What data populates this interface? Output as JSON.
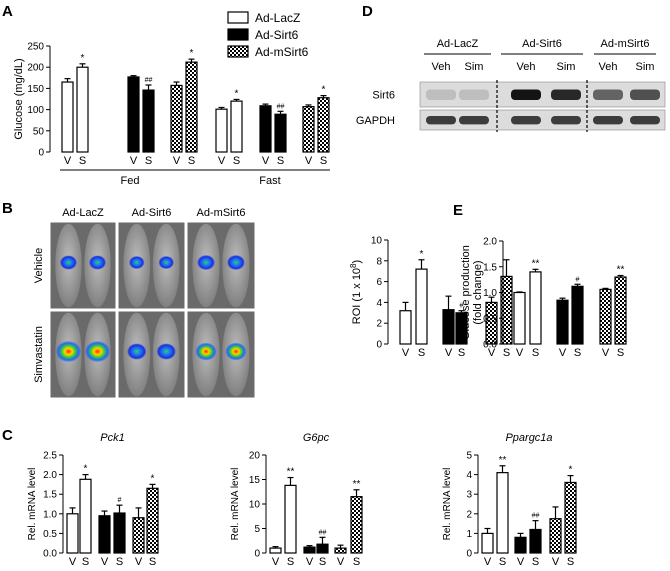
{
  "panel_labels": {
    "A": "A",
    "B": "B",
    "C": "C",
    "D": "D",
    "E": "E"
  },
  "legend": {
    "items": [
      {
        "label": "Ad-LacZ",
        "fill": "white"
      },
      {
        "label": "Ad-Sirt6",
        "fill": "black"
      },
      {
        "label": "Ad-mSirt6",
        "fill": "check"
      }
    ]
  },
  "colors": {
    "bar_border": "#000000",
    "blot_bg": "#dcdcdc",
    "lumen_bg": "#6a6a6a"
  },
  "chart_data": [
    {
      "id": "A",
      "type": "bar",
      "title": "",
      "ylabel": "Glucose (mg/dL)",
      "ylim": [
        0,
        250
      ],
      "yticks": [
        "0",
        "50",
        "100",
        "150",
        "200",
        "250"
      ],
      "groups": [
        "Fed",
        "Fast"
      ],
      "categories": [
        "V",
        "S",
        "V",
        "S",
        "V",
        "S",
        "V",
        "S",
        "V",
        "S",
        "V",
        "S"
      ],
      "series_fill": [
        "white",
        "white",
        "black",
        "black",
        "check",
        "check",
        "white",
        "white",
        "black",
        "black",
        "check",
        "check"
      ],
      "values": [
        165,
        200,
        177,
        146,
        157,
        212,
        101,
        120,
        109,
        89,
        107,
        128
      ],
      "errors": [
        8,
        8,
        3,
        12,
        8,
        7,
        4,
        4,
        4,
        7,
        4,
        5
      ],
      "annotations": [
        "",
        "*",
        "",
        "##",
        "",
        "*",
        "",
        "*",
        "",
        "##",
        "",
        "*"
      ]
    },
    {
      "id": "B",
      "type": "bar",
      "title": "",
      "ylabel": "ROI (1 x 10^8)",
      "ylim": [
        0,
        10
      ],
      "yticks": [
        "0",
        "2",
        "4",
        "6",
        "8",
        "10"
      ],
      "categories": [
        "V",
        "S",
        "V",
        "S",
        "V",
        "S"
      ],
      "series_fill": [
        "white",
        "white",
        "black",
        "black",
        "check",
        "check"
      ],
      "values": [
        3.2,
        7.2,
        3.3,
        3.0,
        4.0,
        6.5
      ],
      "errors": [
        0.8,
        0.9,
        1.3,
        0.2,
        0.5,
        1.6
      ],
      "annotations": [
        "",
        "*",
        "",
        "#",
        "",
        ""
      ]
    },
    {
      "id": "E",
      "type": "bar",
      "title": "",
      "ylabel": "Glucose production (fold change)",
      "ylim": [
        0,
        2.0
      ],
      "yticks": [
        "0.0",
        "0.5",
        "1.0",
        "1.5",
        "2.0"
      ],
      "categories": [
        "V",
        "S",
        "V",
        "S",
        "V",
        "S"
      ],
      "series_fill": [
        "white",
        "white",
        "black",
        "black",
        "check",
        "check"
      ],
      "values": [
        1.0,
        1.4,
        0.85,
        1.12,
        1.06,
        1.3
      ],
      "errors": [
        0.01,
        0.05,
        0.04,
        0.04,
        0.02,
        0.03
      ],
      "annotations": [
        "",
        "**",
        "",
        "#",
        "",
        "**"
      ]
    },
    {
      "id": "C1",
      "type": "bar",
      "title": "Pck1",
      "ylabel": "Rel. mRNA level",
      "ylim": [
        0,
        2.5
      ],
      "yticks": [
        "0.0",
        "0.5",
        "1.0",
        "1.5",
        "2.0",
        "2.5"
      ],
      "categories": [
        "V",
        "S",
        "V",
        "S",
        "V",
        "S"
      ],
      "series_fill": [
        "white",
        "white",
        "black",
        "black",
        "check",
        "check"
      ],
      "values": [
        1.0,
        1.88,
        0.95,
        1.02,
        0.9,
        1.65
      ],
      "errors": [
        0.15,
        0.12,
        0.12,
        0.2,
        0.25,
        0.1
      ],
      "annotations": [
        "",
        "*",
        "",
        "#",
        "",
        "*"
      ]
    },
    {
      "id": "C2",
      "type": "bar",
      "title": "G6pc",
      "ylabel": "Rel. mRNA level",
      "ylim": [
        0,
        20
      ],
      "yticks": [
        "0",
        "5",
        "10",
        "15",
        "20"
      ],
      "categories": [
        "V",
        "S",
        "V",
        "S",
        "V",
        "S"
      ],
      "series_fill": [
        "white",
        "white",
        "black",
        "black",
        "check",
        "check"
      ],
      "values": [
        1.0,
        13.8,
        1.2,
        1.8,
        1.0,
        11.5
      ],
      "errors": [
        0.3,
        1.6,
        0.3,
        1.4,
        0.6,
        1.4
      ],
      "annotations": [
        "",
        "**",
        "",
        "##",
        "",
        "**"
      ]
    },
    {
      "id": "C3",
      "type": "bar",
      "title": "Ppargc1a",
      "ylabel": "Rel. mRNA level",
      "ylim": [
        0,
        5
      ],
      "yticks": [
        "0",
        "1",
        "2",
        "3",
        "4",
        "5"
      ],
      "categories": [
        "V",
        "S",
        "V",
        "S",
        "V",
        "S"
      ],
      "series_fill": [
        "white",
        "white",
        "black",
        "black",
        "check",
        "check"
      ],
      "values": [
        1.0,
        4.1,
        0.8,
        1.2,
        1.75,
        3.6
      ],
      "errors": [
        0.25,
        0.35,
        0.2,
        0.45,
        0.6,
        0.35
      ],
      "annotations": [
        "",
        "**",
        "",
        "##",
        "",
        "*"
      ]
    }
  ],
  "panel_b_images": {
    "columns": [
      "Ad-LacZ",
      "Ad-Sirt6",
      "Ad-mSirt6"
    ],
    "rows": [
      "Vehicle",
      "Simvastatin"
    ],
    "signal": [
      [
        0.45,
        0.35,
        0.5
      ],
      [
        0.95,
        0.6,
        0.7
      ]
    ]
  },
  "panel_d_blot": {
    "groups": [
      "Ad-LacZ",
      "Ad-Sirt6",
      "Ad-mSirt6"
    ],
    "lanes": [
      "Veh",
      "Sim",
      "Veh",
      "Sim",
      "Veh",
      "Sim"
    ],
    "rows": [
      "Sirt6",
      "GAPDH"
    ],
    "sirt6_intensity": [
      0.15,
      0.15,
      1.0,
      0.9,
      0.6,
      0.7
    ],
    "gapdh_intensity": [
      0.8,
      0.8,
      0.8,
      0.8,
      0.8,
      0.8
    ]
  }
}
